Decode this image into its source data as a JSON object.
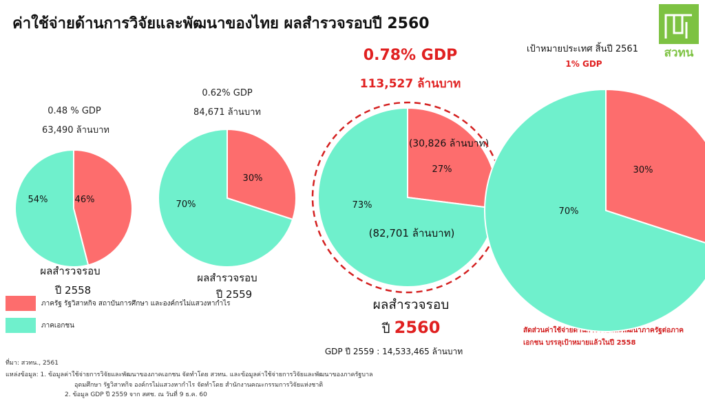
{
  "title": "ค่าใช้จ่ายด้านการวิจัยและพัฒนาของไทย  ผลสำรวจรอบปี 2560",
  "logo": {
    "text": "สวทน",
    "color": "#7dc242"
  },
  "colors": {
    "public": "#fd6d6d",
    "private": "#6ff0cc",
    "highlight": "#d42020"
  },
  "chart_data": [
    {
      "type": "pie",
      "name": "ผลสำรวจรอบ ปี 2558",
      "gdp_label": "0.48 % GDP",
      "amount_label": "63,490 ล้านบาท",
      "caption_line1": "ผลสำรวจรอบ",
      "caption_line2": "ปี 2558",
      "slices": [
        {
          "label": "46%",
          "value": 46,
          "series": "public"
        },
        {
          "label": "54%",
          "value": 54,
          "series": "private"
        }
      ]
    },
    {
      "type": "pie",
      "name": "ผลสำรวจรอบ ปี 2559",
      "gdp_label": "0.62% GDP",
      "amount_label": "84,671 ล้านบาท",
      "caption_line1": "ผลสำรวจรอบ",
      "caption_line2": "ปี 2559",
      "slices": [
        {
          "label": "30%",
          "value": 30,
          "series": "public"
        },
        {
          "label": "70%",
          "value": 70,
          "series": "private"
        }
      ]
    },
    {
      "type": "pie",
      "name": "ผลสำรวจรอบ ปี 2560",
      "gdp_label": "0.78% GDP",
      "amount_label": "113,527 ล้านบาท",
      "caption_line1": "ผลสำรวจรอบ",
      "caption_line2_prefix": "ปี",
      "caption_line2_year": "2560",
      "gdp_note": "GDP  ปี 2559 : 14,533,465  ล้านบาท",
      "slices": [
        {
          "label": "27%",
          "value": 27,
          "series": "public",
          "amount": "(30,826 ล้านบาท)"
        },
        {
          "label": "73%",
          "value": 73,
          "series": "private",
          "amount": "(82,701 ล้านบาท)"
        }
      ]
    },
    {
      "type": "pie",
      "name": "เป้าหมายประเทศ สิ้นปี 2561",
      "gdp_label": "1% GDP",
      "header_label": "เป้าหมายประเทศ  สิ้นปี 2561",
      "caption_line1": "2561",
      "slices": [
        {
          "label": "30%",
          "value": 30,
          "series": "public"
        },
        {
          "label": "70%",
          "value": 70,
          "series": "private"
        }
      ]
    }
  ],
  "legend": [
    {
      "series": "public",
      "label": "ภาครัฐ  รัฐวิสาหกิจ  สถาบันการศึกษา  และองค์กรไม่แสวงหากำไร"
    },
    {
      "series": "private",
      "label": "ภาคเอกชน"
    }
  ],
  "target_note": "สัดส่วนค่าใช้จ่ายด้านการวิจัยและพัฒนาภาครัฐต่อภาคเอกชน บรรลุเป้าหมายแล้วในปี 2558",
  "footer": {
    "source_prefix": "ที่มา:  สวทน.,  2561",
    "ref_line1": "แหล่งข้อมูล:  1.  ข้อมูลค่าใช้จ่ายการวิจัยและพัฒนาของภาคเอกชน   จัดทำโดย   สวทน.  และข้อมูลค่าใช้จ่ายการวิจัยและพัฒนาของภาครัฐบาล",
    "ref_line2": "อุดมศึกษา  รัฐวิสาหกิจ  องค์กรไม่แสวงหากำไร  จัดทำโดย  สำนักงานคณะกรรมการวิจัยแห่งชาติ",
    "ref_line3": "2.  ข้อมูล GDP  ปี 2559  จาก  สศช.  ณ  วันที่  9  ธ.ค.  60"
  }
}
